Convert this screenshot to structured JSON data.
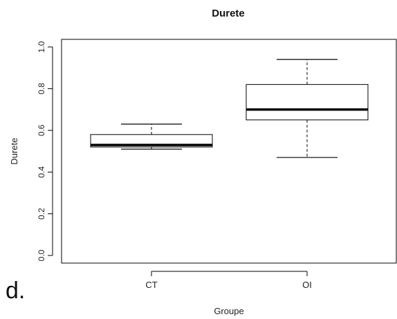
{
  "panel_label": "d.",
  "chart_data": {
    "type": "boxplot",
    "title": "Durete",
    "xlabel": "Groupe",
    "ylabel": "Durete",
    "ylim": [
      0,
      1.0
    ],
    "y_ticks": [
      "0.0",
      "0.2",
      "0.4",
      "0.6",
      "0.8",
      "1.0"
    ],
    "categories": [
      "CT",
      "OI"
    ],
    "boxes": [
      {
        "name": "CT",
        "whisker_low": 0.51,
        "q1": 0.52,
        "median": 0.53,
        "q3": 0.58,
        "whisker_high": 0.63
      },
      {
        "name": "OI",
        "whisker_low": 0.47,
        "q1": 0.65,
        "median": 0.7,
        "q3": 0.82,
        "whisker_high": 0.94
      }
    ],
    "grid": false,
    "colors": {
      "box_fill": "#ffffff",
      "stroke": "#000000",
      "text": "#222222"
    }
  }
}
